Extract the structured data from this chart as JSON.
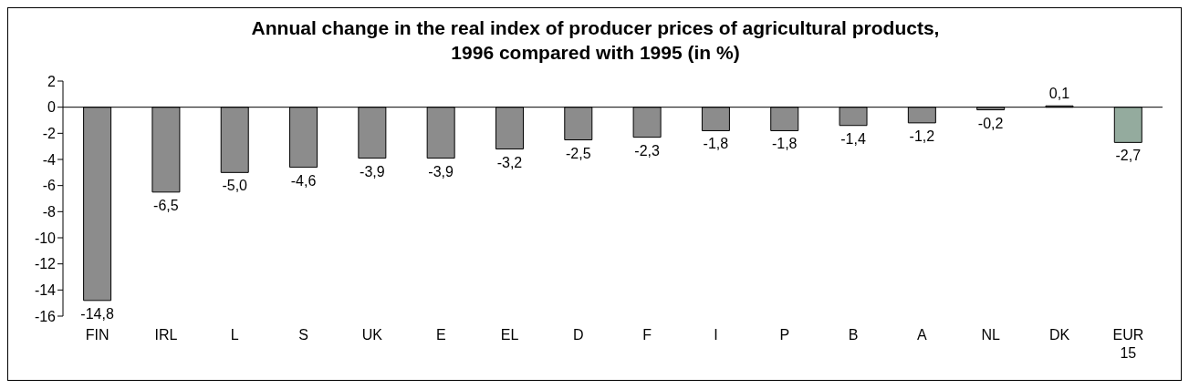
{
  "chart_data": {
    "type": "bar",
    "title": "Annual change in the real index of producer prices of agricultural products,\n1996 compared with 1995 (in %)",
    "categories": [
      "FIN",
      "IRL",
      "L",
      "S",
      "UK",
      "E",
      "EL",
      "D",
      "F",
      "I",
      "P",
      "B",
      "A",
      "NL",
      "DK",
      "EUR 15"
    ],
    "values": [
      -14.8,
      -6.5,
      -5.0,
      -4.6,
      -3.9,
      -3.9,
      -3.2,
      -2.5,
      -2.3,
      -1.8,
      -1.8,
      -1.4,
      -1.2,
      -0.2,
      0.1,
      -2.7
    ],
    "value_labels": [
      "-14,8",
      "-6,5",
      "-5,0",
      "-4,6",
      "-3,9",
      "-3,9",
      "-3,2",
      "-2,5",
      "-2,3",
      "-1,8",
      "-1,8",
      "-1,4",
      "-1,2",
      "-0,2",
      "0,1",
      "-2,7"
    ],
    "colors": [
      "#8c8c8c",
      "#8c8c8c",
      "#8c8c8c",
      "#8c8c8c",
      "#8c8c8c",
      "#8c8c8c",
      "#8c8c8c",
      "#8c8c8c",
      "#8c8c8c",
      "#8c8c8c",
      "#8c8c8c",
      "#8c8c8c",
      "#8c8c8c",
      "#8c8c8c",
      "#8c8c8c",
      "#94ab9e"
    ],
    "ylim": [
      -16,
      2
    ],
    "yticks": [
      -16,
      -14,
      -12,
      -10,
      -8,
      -6,
      -4,
      -2,
      0,
      2
    ],
    "ref_lines": [
      {
        "axis": "y",
        "value": 0,
        "color": "#000000"
      }
    ]
  }
}
